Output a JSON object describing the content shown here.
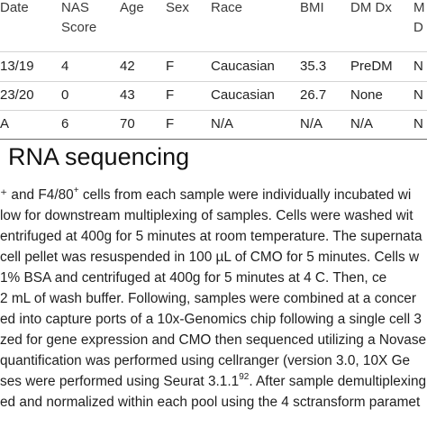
{
  "table": {
    "headers": {
      "date": "Date",
      "nas_line1": "NAS",
      "nas_line2": "Score",
      "age": "Age",
      "sex": "Sex",
      "race": "Race",
      "bmi": "BMI",
      "dm": "DM Dx",
      "last_line1": "M",
      "last_line2": "D"
    },
    "rows": [
      {
        "date": "13/19",
        "nas": "4",
        "age": "42",
        "sex": "F",
        "race": "Caucasian",
        "bmi": "35.3",
        "dm": "PreDM",
        "last": "N"
      },
      {
        "date": "23/20",
        "nas": "0",
        "age": "43",
        "sex": "F",
        "race": "Caucasian",
        "bmi": "26.7",
        "dm": "None",
        "last": "N"
      },
      {
        "date": "A",
        "nas": "6",
        "age": "70",
        "sex": "F",
        "race": "N/A",
        "bmi": "N/A",
        "dm": "N/A",
        "last": "N"
      }
    ]
  },
  "section": {
    "heading": "RNA sequencing",
    "lines": [
      {
        "pre": "⁺ and F4/80",
        "sup": "+",
        "post": " cells from each sample were individually incubated wi"
      },
      {
        "text": "low for downstream multiplexing of samples. Cells were washed wit"
      },
      {
        "text": "entrifuged at 400g for 5 minutes at room temperature. The supernata"
      },
      {
        "text": " cell pellet was resuspended in 100 µL of CMO for 5 minutes. Cells w"
      },
      {
        "text": "1% BSA and centrifuged at 400g for 5 minutes at 4  C. Then, ce"
      },
      {
        "text": "2 mL of wash buffer. Following, samples were combined at a concer"
      },
      {
        "text": "ed into capture ports of a 10x-Genomics chip following a single cell 3"
      },
      {
        "text": "zed for gene expression and CMO then sequenced utilizing a Novase"
      },
      {
        "text": " quantification was performed using cellranger (version 3.0, 10X Ge"
      },
      {
        "pre": "ses were performed using Seurat 3.1.1",
        "sup": "92",
        "post": ". After sample demultiplexing"
      },
      {
        "text": "ed and normalized within each pool using the 4 sctransform paramet"
      }
    ]
  }
}
